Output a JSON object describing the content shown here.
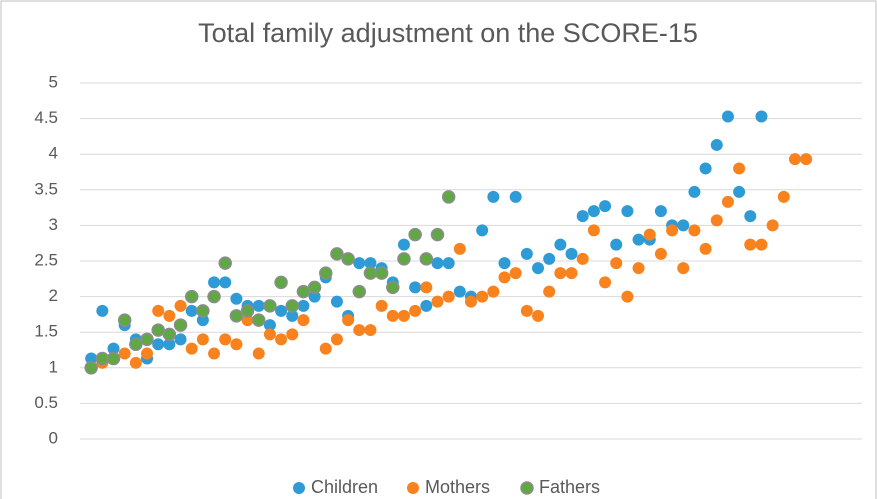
{
  "chart_data": {
    "type": "scatter",
    "title": "Total family adjustment on the SCORE-15",
    "xlim": [
      0,
      70
    ],
    "ylim": [
      0,
      5
    ],
    "yticks": [
      0,
      0.5,
      1,
      1.5,
      2,
      2.5,
      3,
      3.5,
      4,
      4.5,
      5
    ],
    "grid": true,
    "legend": "bottom",
    "series": [
      {
        "name": "Children",
        "color": "#2e9bd6",
        "x": [
          1,
          2,
          3,
          4,
          5,
          6,
          7,
          8,
          9,
          10,
          11,
          12,
          13,
          14,
          15,
          16,
          17,
          18,
          19,
          20,
          21,
          22,
          23,
          24,
          25,
          26,
          27,
          28,
          29,
          30,
          31,
          32,
          33,
          34,
          35,
          36,
          37,
          38,
          39,
          40,
          41,
          42,
          43,
          44,
          45,
          46,
          47,
          48,
          49,
          50,
          51,
          52,
          53,
          54,
          55,
          56,
          57,
          58,
          59,
          60,
          61
        ],
        "values": [
          1.13,
          1.8,
          1.27,
          1.6,
          1.4,
          1.13,
          1.33,
          1.33,
          1.4,
          1.8,
          1.67,
          2.2,
          2.2,
          1.97,
          1.87,
          1.87,
          1.6,
          1.8,
          1.73,
          1.87,
          2.0,
          2.27,
          1.93,
          1.73,
          2.47,
          2.47,
          2.4,
          2.2,
          2.73,
          2.13,
          1.87,
          2.47,
          2.47,
          2.07,
          2.0,
          2.93,
          3.4,
          2.47,
          3.4,
          2.6,
          2.4,
          2.53,
          2.73,
          2.6,
          3.13,
          3.2,
          3.27,
          2.73,
          3.2,
          2.8,
          2.8,
          3.2,
          3.0,
          3.0,
          3.47,
          3.8,
          4.13,
          4.53,
          3.47,
          3.13,
          4.53
        ]
      },
      {
        "name": "Mothers",
        "color": "#f7821e",
        "x": [
          2,
          3,
          4,
          5,
          6,
          7,
          8,
          9,
          10,
          11,
          12,
          13,
          14,
          15,
          16,
          17,
          18,
          19,
          20,
          22,
          23,
          24,
          25,
          26,
          27,
          28,
          29,
          30,
          31,
          32,
          33,
          34,
          35,
          36,
          37,
          38,
          39,
          40,
          41,
          42,
          43,
          44,
          45,
          46,
          47,
          48,
          49,
          50,
          51,
          52,
          53,
          54,
          55,
          56,
          57,
          58,
          59,
          60,
          61,
          62,
          63,
          64,
          65
        ],
        "values": [
          1.07,
          1.13,
          1.2,
          1.07,
          1.2,
          1.8,
          1.73,
          1.87,
          1.27,
          1.4,
          1.2,
          1.4,
          1.33,
          1.67,
          1.2,
          1.47,
          1.4,
          1.47,
          1.67,
          1.27,
          1.4,
          1.67,
          1.53,
          1.53,
          1.87,
          1.73,
          1.73,
          1.8,
          2.13,
          1.93,
          2.0,
          2.67,
          1.93,
          2.0,
          2.07,
          2.27,
          2.33,
          1.8,
          1.73,
          2.07,
          2.33,
          2.33,
          2.53,
          2.93,
          2.2,
          2.47,
          2.0,
          2.4,
          2.87,
          2.6,
          2.93,
          2.4,
          2.93,
          2.67,
          3.07,
          3.33,
          3.8,
          2.73,
          2.73,
          3.0,
          3.4,
          3.93,
          3.93
        ]
      },
      {
        "name": "Fathers",
        "color": "#5fa843",
        "x": [
          1,
          2,
          3,
          4,
          5,
          6,
          7,
          8,
          9,
          10,
          11,
          12,
          13,
          14,
          15,
          16,
          17,
          18,
          19,
          20,
          21,
          22,
          23,
          24,
          25,
          26,
          27,
          28,
          29,
          30,
          31,
          32,
          33
        ],
        "values": [
          1.0,
          1.13,
          1.13,
          1.67,
          1.33,
          1.4,
          1.53,
          1.47,
          1.6,
          2.0,
          1.8,
          2.0,
          2.47,
          1.73,
          1.8,
          1.67,
          1.87,
          2.2,
          1.87,
          2.07,
          2.13,
          2.33,
          2.6,
          2.53,
          2.07,
          2.33,
          2.33,
          2.13,
          2.53,
          2.87,
          2.53,
          2.87,
          3.4
        ]
      }
    ]
  }
}
